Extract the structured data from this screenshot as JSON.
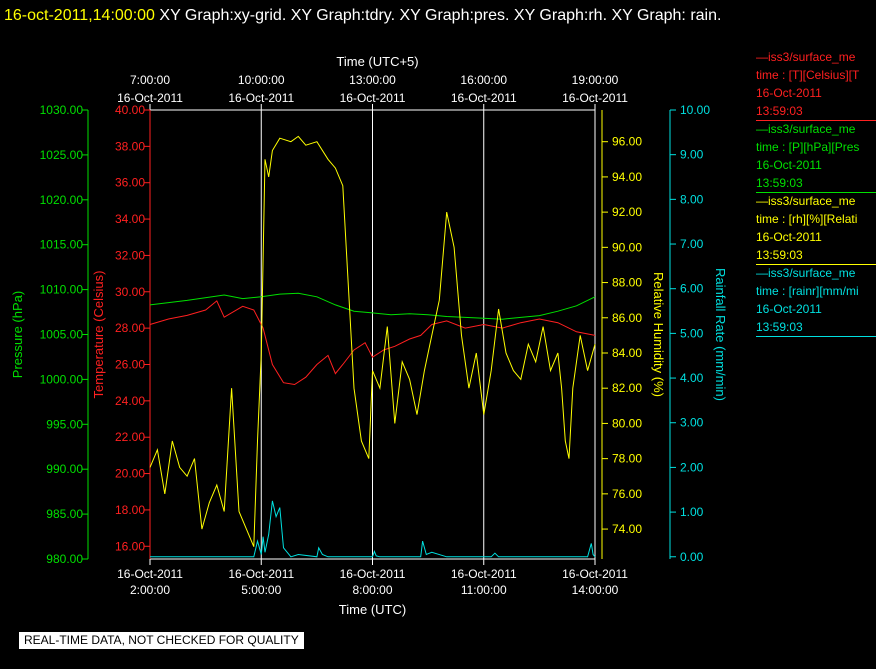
{
  "header": {
    "timestamp": "16-oct-2011,14:00:00",
    "graphs_text": "XY Graph:xy-grid.  XY Graph:tdry.  XY Graph:pres.  XY Graph:rh.  XY Graph: rain."
  },
  "footer": {
    "text": "REAL-TIME DATA, NOT CHECKED FOR QUALITY"
  },
  "legend": [
    {
      "line1": "—iss3/surface_me",
      "line2": "time : [T][Celsius][T",
      "line3": "16-Oct-2011",
      "line4": "13:59:03",
      "color": "#ff2020"
    },
    {
      "line1": "—iss3/surface_me",
      "line2": "time : [P][hPa][Pres",
      "line3": "16-Oct-2011",
      "line4": "13:59:03",
      "color": "#00e000"
    },
    {
      "line1": "—iss3/surface_me",
      "line2": "time : [rh][%][Relati",
      "line3": "16-Oct-2011",
      "line4": "13:59:03",
      "color": "#ffff00"
    },
    {
      "line1": "—iss3/surface_me",
      "line2": "time : [rainr][mm/mi",
      "line3": "16-Oct-2011",
      "line4": "13:59:03",
      "color": "#00e0e0"
    }
  ],
  "chart_data": {
    "type": "line",
    "grid": true,
    "top_axis": {
      "label": "Time (UTC+5)",
      "ticks": [
        {
          "time": "7:00:00",
          "date": "16-Oct-2011"
        },
        {
          "time": "10:00:00",
          "date": "16-Oct-2011"
        },
        {
          "time": "13:00:00",
          "date": "16-Oct-2011"
        },
        {
          "time": "16:00:00",
          "date": "16-Oct-2011"
        },
        {
          "time": "19:00:00",
          "date": "16-Oct-2011"
        }
      ]
    },
    "bottom_axis": {
      "label": "Time (UTC)",
      "range": [
        2,
        14
      ],
      "ticks": [
        {
          "value": 2,
          "date": "16-Oct-2011",
          "time": "2:00:00"
        },
        {
          "value": 5,
          "date": "16-Oct-2011",
          "time": "5:00:00"
        },
        {
          "value": 8,
          "date": "16-Oct-2011",
          "time": "8:00:00"
        },
        {
          "value": 11,
          "date": "16-Oct-2011",
          "time": "11:00:00"
        },
        {
          "value": 14,
          "date": "16-Oct-2011",
          "time": "14:00:00"
        }
      ]
    },
    "axes": {
      "pressure": {
        "label": "Pressure (hPa)",
        "range": [
          980,
          1030
        ],
        "color": "#00e000",
        "ticks": [
          "980.00",
          "985.00",
          "990.00",
          "995.00",
          "1000.00",
          "1005.00",
          "1010.00",
          "1015.00",
          "1020.00",
          "1025.00",
          "1030.00"
        ]
      },
      "temperature": {
        "label": "Temperature (Celsius)",
        "range": [
          15.3,
          40
        ],
        "color": "#ff2020",
        "ticks": [
          "16.00",
          "18.00",
          "20.00",
          "22.00",
          "24.00",
          "26.00",
          "28.00",
          "30.00",
          "32.00",
          "34.00",
          "36.00",
          "38.00",
          "40.00"
        ]
      },
      "humidity": {
        "label": "Relative Humidity (%)",
        "range": [
          72.3,
          97.8
        ],
        "color": "#ffff00",
        "ticks": [
          "74.00",
          "76.00",
          "78.00",
          "80.00",
          "82.00",
          "84.00",
          "86.00",
          "88.00",
          "90.00",
          "92.00",
          "94.00",
          "96.00"
        ]
      },
      "rain": {
        "label": "Rainfall Rate (mm/min)",
        "range": [
          -0.05,
          10
        ],
        "color": "#00e0e0",
        "ticks": [
          "0.00",
          "1.00",
          "2.00",
          "3.00",
          "4.00",
          "5.00",
          "6.00",
          "7.00",
          "8.00",
          "9.00",
          "10.00"
        ]
      }
    },
    "series": [
      {
        "name": "iss3/surface_me time : [T][Celsius][T",
        "axis": "temperature",
        "x": [
          2,
          2.5,
          3,
          3.5,
          3.8,
          4,
          4.5,
          4.8,
          5.05,
          5.3,
          5.6,
          5.9,
          6.2,
          6.5,
          6.8,
          7,
          7.2,
          7.5,
          7.8,
          8,
          8.3,
          8.6,
          9,
          9.3,
          9.6,
          10,
          10.5,
          11,
          11.5,
          12,
          12.5,
          13,
          13.5,
          14
        ],
        "y": [
          28.2,
          28.5,
          28.7,
          29.0,
          29.5,
          28.6,
          29.2,
          29.0,
          28.0,
          26.0,
          25.0,
          24.9,
          25.3,
          26.0,
          26.5,
          25.5,
          26.0,
          26.8,
          27.2,
          26.4,
          26.8,
          27.0,
          27.4,
          27.6,
          28.2,
          28.4,
          28.0,
          28.2,
          28.0,
          28.3,
          28.5,
          28.3,
          27.8,
          27.6
        ]
      },
      {
        "name": "iss3/surface_me time : [P][hPa][Pres",
        "axis": "pressure",
        "x": [
          2,
          3,
          4,
          4.5,
          5,
          5.5,
          6,
          6.5,
          7,
          7.5,
          8,
          8.5,
          9,
          9.5,
          10,
          10.5,
          11,
          11.5,
          12,
          12.5,
          13,
          13.5,
          14
        ],
        "y": [
          1008.3,
          1008.8,
          1009.4,
          1009.0,
          1009.2,
          1009.5,
          1009.6,
          1009.2,
          1008.3,
          1007.6,
          1007.4,
          1007.2,
          1007.3,
          1007.2,
          1007.0,
          1006.9,
          1006.8,
          1006.7,
          1006.9,
          1007.1,
          1007.6,
          1008.2,
          1009.2
        ]
      },
      {
        "name": "iss3/surface_me time : [rh][%][Relati",
        "axis": "humidity",
        "x": [
          2,
          2.2,
          2.4,
          2.6,
          2.8,
          3.0,
          3.2,
          3.4,
          3.6,
          3.8,
          4.0,
          4.2,
          4.4,
          4.6,
          4.8,
          4.9,
          5.0,
          5.1,
          5.2,
          5.3,
          5.5,
          5.8,
          6.0,
          6.2,
          6.5,
          6.8,
          7.0,
          7.2,
          7.5,
          7.7,
          7.9,
          8.0,
          8.2,
          8.4,
          8.6,
          8.8,
          9.0,
          9.2,
          9.4,
          9.6,
          9.8,
          10.0,
          10.2,
          10.4,
          10.6,
          10.8,
          11.0,
          11.2,
          11.4,
          11.6,
          11.8,
          12.0,
          12.2,
          12.4,
          12.6,
          12.8,
          13.0,
          13.1,
          13.2,
          13.3,
          13.4,
          13.6,
          13.8,
          14.0
        ],
        "y": [
          77.5,
          78.5,
          76.0,
          79.0,
          77.5,
          77.0,
          78.0,
          74.0,
          75.5,
          76.5,
          75.0,
          82.0,
          75.0,
          74.0,
          73.0,
          79.0,
          84.0,
          95.0,
          94.0,
          95.5,
          96.2,
          96.0,
          96.3,
          95.8,
          96.0,
          95.0,
          94.5,
          93.5,
          82.0,
          79.0,
          78.0,
          83.0,
          82.0,
          85.5,
          80.0,
          83.5,
          82.5,
          80.5,
          83.0,
          85.0,
          87.0,
          92.0,
          90.0,
          85.0,
          82.0,
          84.0,
          80.5,
          83.0,
          86.5,
          84.0,
          83.0,
          82.5,
          84.5,
          83.5,
          85.5,
          83.0,
          84.0,
          82.0,
          79.0,
          78.0,
          82.0,
          85.0,
          83.0,
          84.5
        ]
      },
      {
        "name": "iss3/surface_me time : [rainr][mm/mi",
        "axis": "rain",
        "x": [
          2,
          4.8,
          4.9,
          5.0,
          5.05,
          5.1,
          5.2,
          5.3,
          5.4,
          5.5,
          5.6,
          5.8,
          6.0,
          6.5,
          6.55,
          6.65,
          6.8,
          7.0,
          7.5,
          8.0,
          8.05,
          8.1,
          8.2,
          9.0,
          9.3,
          9.35,
          9.45,
          9.6,
          10.0,
          11.2,
          11.3,
          11.4,
          12,
          13.6,
          13.8,
          13.9,
          13.95,
          14
        ],
        "y": [
          0.0,
          0.0,
          0.35,
          0.05,
          0.45,
          0.1,
          0.5,
          1.25,
          0.9,
          1.1,
          0.2,
          0.0,
          0.05,
          0.0,
          0.2,
          0.05,
          0.0,
          0.0,
          0.0,
          0.0,
          0.12,
          0.02,
          0.0,
          0.0,
          0.0,
          0.35,
          0.05,
          0.1,
          0.0,
          0.0,
          0.08,
          0.0,
          0.0,
          0.0,
          0.0,
          0.3,
          0.05,
          0.0
        ]
      }
    ]
  }
}
